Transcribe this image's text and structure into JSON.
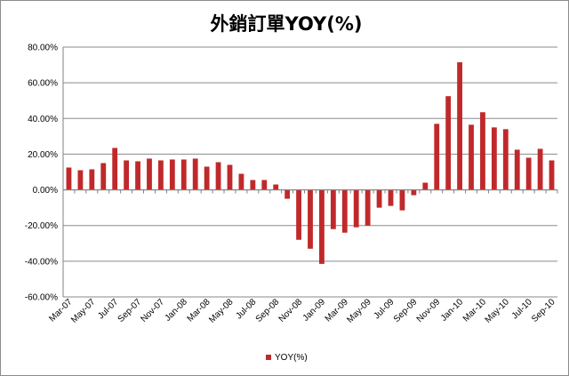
{
  "chart_data": {
    "type": "bar",
    "title": "外銷訂單YOY(%)",
    "xlabel": "",
    "ylabel": "",
    "ylim": [
      -60,
      80
    ],
    "y_ticks": [
      "80.00%",
      "60.00%",
      "40.00%",
      "20.00%",
      "0.00%",
      "-20.00%",
      "-40.00%",
      "-60.00%"
    ],
    "x_tick_labels": [
      "Mar-07",
      "May-07",
      "Jul-07",
      "Sep-07",
      "Nov-07",
      "Jan-08",
      "Mar-08",
      "May-08",
      "Jul-08",
      "Sep-08",
      "Nov-08",
      "Jan-09",
      "Mar-09",
      "May-09",
      "Jul-09",
      "Sep-09",
      "Nov-09",
      "Jan-10",
      "Mar-10",
      "May-10",
      "Jul-10",
      "Sep-10"
    ],
    "categories": [
      "Mar-07",
      "Apr-07",
      "May-07",
      "Jun-07",
      "Jul-07",
      "Aug-07",
      "Sep-07",
      "Oct-07",
      "Nov-07",
      "Dec-07",
      "Jan-08",
      "Feb-08",
      "Mar-08",
      "Apr-08",
      "May-08",
      "Jun-08",
      "Jul-08",
      "Aug-08",
      "Sep-08",
      "Oct-08",
      "Nov-08",
      "Dec-08",
      "Jan-09",
      "Feb-09",
      "Mar-09",
      "Apr-09",
      "May-09",
      "Jun-09",
      "Jul-09",
      "Aug-09",
      "Sep-09",
      "Oct-09",
      "Nov-09",
      "Dec-09",
      "Jan-10",
      "Feb-10",
      "Mar-10",
      "Apr-10",
      "May-10",
      "Jun-10",
      "Jul-10",
      "Aug-10",
      "Sep-10"
    ],
    "series": [
      {
        "name": "YOY(%)",
        "color": "#c0292b",
        "values": [
          12.5,
          11,
          11.5,
          15,
          23.5,
          16.5,
          16,
          17.5,
          16.5,
          17,
          17,
          17.5,
          13,
          15.5,
          14,
          9,
          5.5,
          5.5,
          3,
          -5,
          -28,
          -33,
          -41.5,
          -22,
          -24,
          -21,
          -20,
          -10,
          -9,
          -11.5,
          -3,
          4,
          37,
          52.5,
          71.5,
          36.5,
          43.5,
          35,
          34,
          22.5,
          18,
          23,
          16.5
        ]
      }
    ],
    "grid": true,
    "legend": "bottom"
  }
}
